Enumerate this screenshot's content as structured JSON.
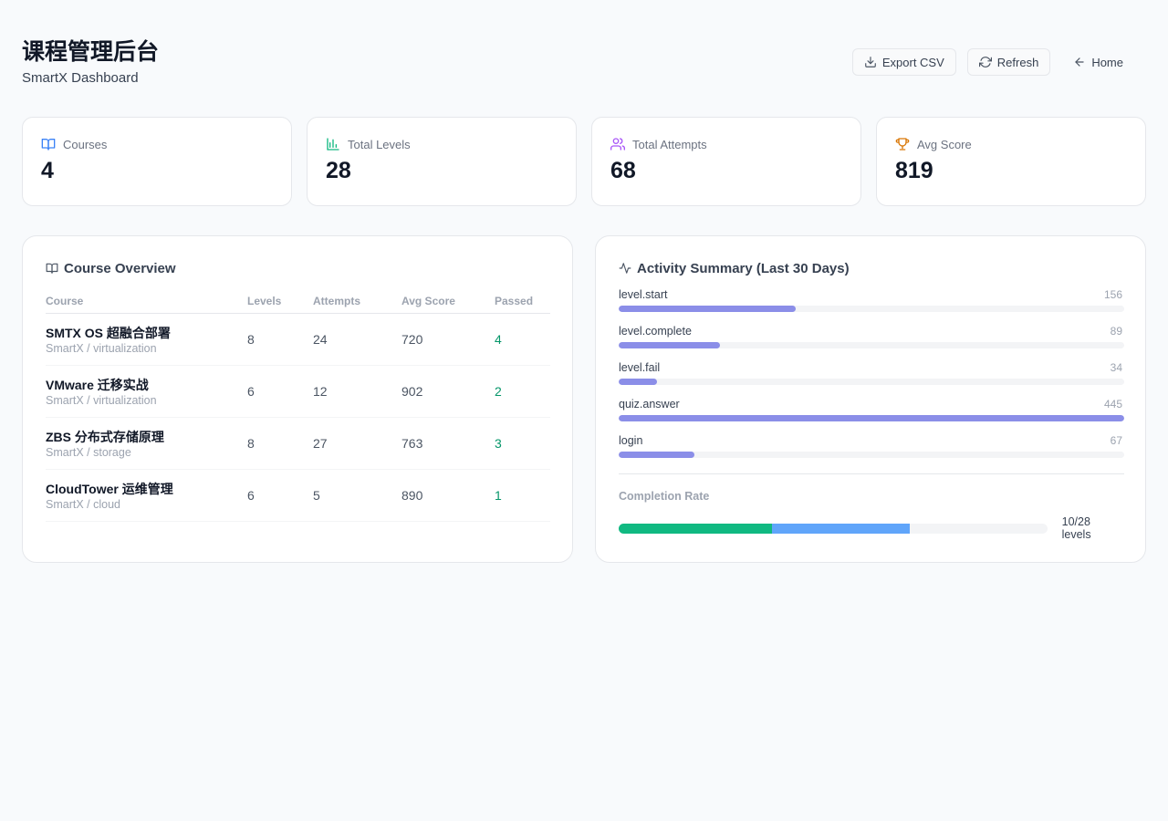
{
  "header": {
    "title": "课程管理后台",
    "subtitle": "SmartX Dashboard",
    "export_label": "Export CSV",
    "refresh_label": "Refresh",
    "home_label": "Home"
  },
  "stats": [
    {
      "label": "Courses",
      "value": "4",
      "icon": "book-icon",
      "color": "#3b82f6"
    },
    {
      "label": "Total Levels",
      "value": "28",
      "icon": "bar-chart-icon",
      "color": "#10b981"
    },
    {
      "label": "Total Attempts",
      "value": "68",
      "icon": "users-icon",
      "color": "#a855f7"
    },
    {
      "label": "Avg Score",
      "value": "819",
      "icon": "trophy-icon",
      "color": "#d97706"
    }
  ],
  "overview": {
    "title": "Course Overview",
    "columns": [
      "Course",
      "Levels",
      "Attempts",
      "Avg Score",
      "Passed"
    ],
    "rows": [
      {
        "name": "SMTX OS 超融合部署",
        "sub": "SmartX / virtualization",
        "levels": "8",
        "attempts": "24",
        "avg": "720",
        "passed": "4"
      },
      {
        "name": "VMware 迁移实战",
        "sub": "SmartX / virtualization",
        "levels": "6",
        "attempts": "12",
        "avg": "902",
        "passed": "2"
      },
      {
        "name": "ZBS 分布式存储原理",
        "sub": "SmartX / storage",
        "levels": "8",
        "attempts": "27",
        "avg": "763",
        "passed": "3"
      },
      {
        "name": "CloudTower 运维管理",
        "sub": "SmartX / cloud",
        "levels": "6",
        "attempts": "5",
        "avg": "890",
        "passed": "1"
      }
    ]
  },
  "activity": {
    "title": "Activity Summary (Last 30 Days)",
    "max": 445,
    "items": [
      {
        "label": "level.start",
        "count": 156
      },
      {
        "label": "level.complete",
        "count": 89
      },
      {
        "label": "level.fail",
        "count": 34
      },
      {
        "label": "quiz.answer",
        "count": 445
      },
      {
        "label": "login",
        "count": 67
      }
    ]
  },
  "completion": {
    "title": "Completion Rate",
    "text": "10/28 levels",
    "completed": 10,
    "in_progress": 9,
    "total": 28,
    "colors": {
      "completed": "#10b981",
      "in_progress": "#60a5fa"
    }
  }
}
